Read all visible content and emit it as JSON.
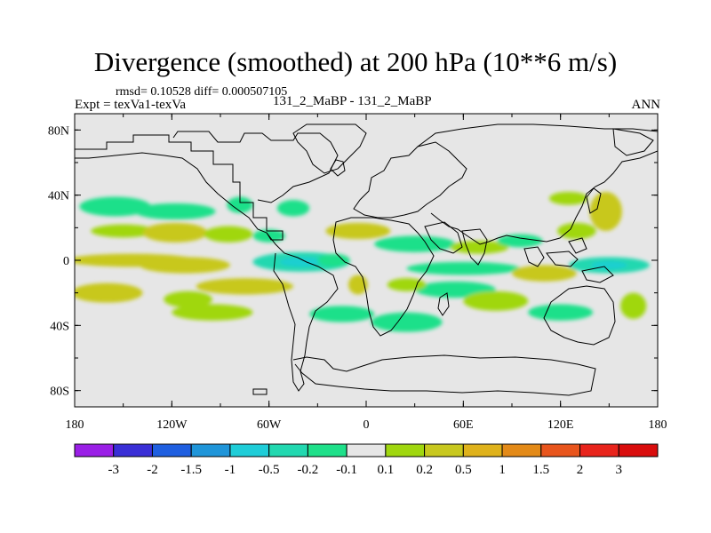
{
  "title": "Divergence (smoothed) at 200 hPa (10**6 m/s)",
  "stats": "rmsd= 0.10528 diff= 0.000507105",
  "expt": "Expt = texVa1-texVa",
  "cases": "131_2_MaBP - 131_2_MaBP",
  "season": "ANN",
  "map": {
    "lat_labels": [
      "80N",
      "40N",
      "0",
      "40S",
      "80S"
    ],
    "lat_values": [
      80,
      40,
      0,
      -40,
      -80
    ],
    "lon_labels": [
      "180",
      "120W",
      "60W",
      "0",
      "60E",
      "120E",
      "180"
    ],
    "lon_values": [
      -180,
      -120,
      -60,
      0,
      60,
      120,
      180
    ],
    "lon_range": [
      -180,
      180
    ],
    "lat_range": [
      -90,
      90
    ],
    "background_color": "#e6e6e6"
  },
  "colorbar": {
    "labels": [
      "-3",
      "-2",
      "-1.5",
      "-1",
      "-0.5",
      "-0.2",
      "-0.1",
      "0.1",
      "0.2",
      "0.5",
      "1",
      "1.5",
      "2",
      "3"
    ],
    "colors": [
      "#9a1fe6",
      "#3a2fd6",
      "#1f5fe0",
      "#1f95d9",
      "#1fcdd8",
      "#22d8b0",
      "#1fe08a",
      "#e6e6e6",
      "#a0d70f",
      "#c8c81f",
      "#dfb21c",
      "#e38a18",
      "#e8551d",
      "#e8241c",
      "#d90d0d"
    ]
  },
  "chart_data": {
    "type": "contour-map",
    "title": "Divergence (smoothed) at 200 hPa (10**6 m/s)",
    "units": "10**6 m/s",
    "rmsd": 0.10528,
    "diff": 0.000507105,
    "xlim": [
      -180,
      180
    ],
    "ylim": [
      -90,
      90
    ],
    "levels": [
      -3,
      -2,
      -1.5,
      -1,
      -0.5,
      -0.2,
      -0.1,
      0.1,
      0.2,
      0.5,
      1,
      1.5,
      2,
      3
    ],
    "blobs": [
      {
        "lon": -155,
        "lat": 33,
        "rlon": 22,
        "rlat": 6,
        "value": -0.15
      },
      {
        "lon": -118,
        "lat": 30,
        "rlon": 25,
        "rlat": 5,
        "value": -0.15
      },
      {
        "lon": -78,
        "lat": 34,
        "rlon": 8,
        "rlat": 5,
        "value": -0.15
      },
      {
        "lon": -45,
        "lat": 32,
        "rlon": 10,
        "rlat": 5,
        "value": -0.15
      },
      {
        "lon": -150,
        "lat": 18,
        "rlon": 20,
        "rlat": 4,
        "value": 0.15
      },
      {
        "lon": -118,
        "lat": 17,
        "rlon": 20,
        "rlat": 6,
        "value": 0.35
      },
      {
        "lon": -85,
        "lat": 16,
        "rlon": 15,
        "rlat": 5,
        "value": 0.15
      },
      {
        "lon": -60,
        "lat": 15,
        "rlon": 10,
        "rlat": 4,
        "value": -0.15
      },
      {
        "lon": -5,
        "lat": 18,
        "rlon": 20,
        "rlat": 5,
        "value": 0.35
      },
      {
        "lon": -145,
        "lat": 0,
        "rlon": 40,
        "rlat": 4,
        "value": 0.35
      },
      {
        "lon": -112,
        "lat": -3,
        "rlon": 28,
        "rlat": 5,
        "value": 0.35
      },
      {
        "lon": -40,
        "lat": -1,
        "rlon": 30,
        "rlat": 6,
        "value": -0.35
      },
      {
        "lon": -20,
        "lat": 0,
        "rlon": 10,
        "rlat": 4,
        "value": -0.15
      },
      {
        "lon": 30,
        "lat": 10,
        "rlon": 25,
        "rlat": 5,
        "value": -0.15
      },
      {
        "lon": 70,
        "lat": 8,
        "rlon": 18,
        "rlat": 4,
        "value": 0.15
      },
      {
        "lon": 95,
        "lat": 12,
        "rlon": 14,
        "rlat": 4,
        "value": -0.15
      },
      {
        "lon": 60,
        "lat": -5,
        "rlon": 35,
        "rlat": 4,
        "value": -0.15
      },
      {
        "lon": 150,
        "lat": -3,
        "rlon": 25,
        "rlat": 5,
        "value": -0.35
      },
      {
        "lon": 110,
        "lat": -8,
        "rlon": 20,
        "rlat": 5,
        "value": 0.35
      },
      {
        "lon": 130,
        "lat": 18,
        "rlon": 12,
        "rlat": 5,
        "value": 0.15
      },
      {
        "lon": 148,
        "lat": 30,
        "rlon": 10,
        "rlat": 12,
        "value": 0.35
      },
      {
        "lon": 125,
        "lat": 38,
        "rlon": 12,
        "rlat": 4,
        "value": 0.15
      },
      {
        "lon": -160,
        "lat": -20,
        "rlon": 22,
        "rlat": 6,
        "value": 0.35
      },
      {
        "lon": -110,
        "lat": -24,
        "rlon": 15,
        "rlat": 5,
        "value": 0.15
      },
      {
        "lon": -75,
        "lat": -16,
        "rlon": 30,
        "rlat": 5,
        "value": 0.35
      },
      {
        "lon": -95,
        "lat": -32,
        "rlon": 25,
        "rlat": 5,
        "value": 0.15
      },
      {
        "lon": -5,
        "lat": -15,
        "rlon": 6,
        "rlat": 6,
        "value": 0.35
      },
      {
        "lon": -15,
        "lat": -33,
        "rlon": 20,
        "rlat": 5,
        "value": -0.15
      },
      {
        "lon": 25,
        "lat": -38,
        "rlon": 22,
        "rlat": 6,
        "value": -0.15
      },
      {
        "lon": 55,
        "lat": -18,
        "rlon": 25,
        "rlat": 5,
        "value": -0.15
      },
      {
        "lon": 80,
        "lat": -25,
        "rlon": 20,
        "rlat": 6,
        "value": 0.15
      },
      {
        "lon": 120,
        "lat": -32,
        "rlon": 20,
        "rlat": 5,
        "value": -0.15
      },
      {
        "lon": 165,
        "lat": -28,
        "rlon": 8,
        "rlat": 8,
        "value": 0.15
      },
      {
        "lon": 25,
        "lat": -15,
        "rlon": 12,
        "rlat": 4,
        "value": 0.15
      }
    ]
  }
}
